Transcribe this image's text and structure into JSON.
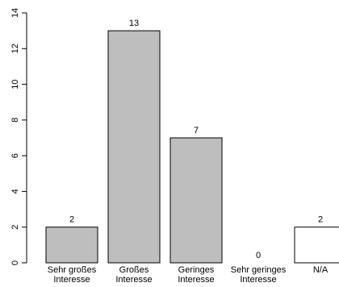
{
  "chart_data": {
    "type": "bar",
    "categories": [
      [
        "Sehr großes",
        "Interesse"
      ],
      [
        "Großes",
        "Interesse"
      ],
      [
        "Geringes",
        "Interesse"
      ],
      [
        "Sehr geringes",
        "Interesse"
      ],
      [
        "N/A"
      ]
    ],
    "values": [
      2,
      13,
      7,
      0,
      2
    ],
    "bar_colors": [
      "#bebebe",
      "#bebebe",
      "#bebebe",
      "#bebebe",
      "#ffffff"
    ],
    "ylim": [
      0,
      14
    ],
    "yticks": [
      0,
      2,
      4,
      6,
      8,
      10,
      12,
      14
    ],
    "title": "",
    "xlabel": "",
    "ylabel": "",
    "grid": false,
    "legend": "none"
  }
}
